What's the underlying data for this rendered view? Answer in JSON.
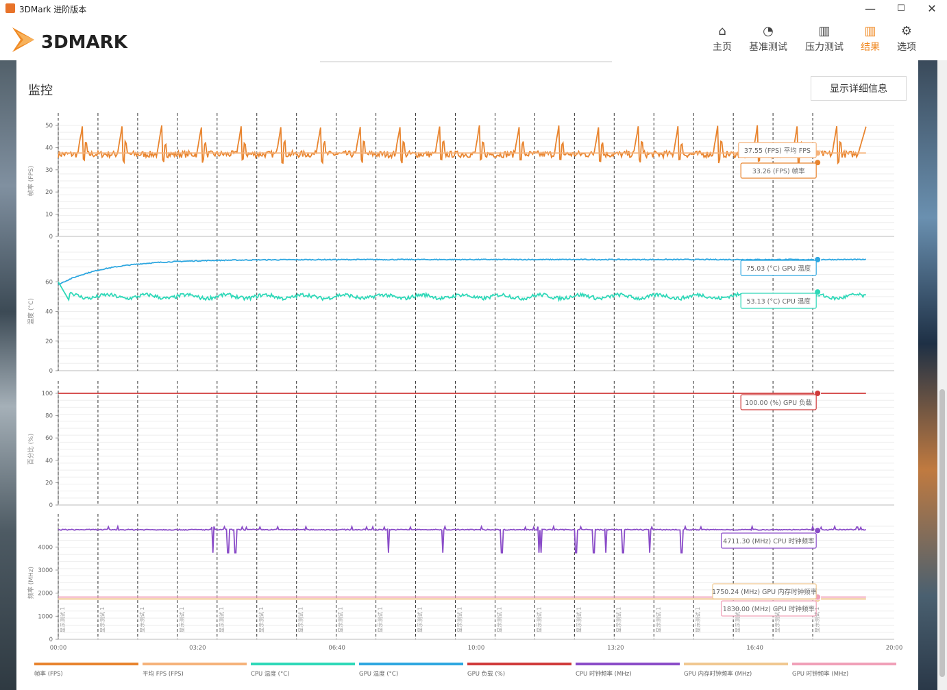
{
  "window": {
    "title": "3DMark 进阶版本",
    "min": "—",
    "max": "☐",
    "close": "✕"
  },
  "nav": {
    "items": [
      {
        "label": "主页",
        "icon": "home-icon",
        "glyph": "⌂"
      },
      {
        "label": "基准测试",
        "icon": "speedometer-icon",
        "glyph": "◔"
      },
      {
        "label": "压力测试",
        "icon": "bar-chart-icon",
        "glyph": "▥"
      },
      {
        "label": "结果",
        "icon": "results-icon",
        "glyph": "▥"
      },
      {
        "label": "选项",
        "icon": "gear-icon",
        "glyph": "⚙"
      }
    ],
    "active": 3,
    "accent": "#f08a24"
  },
  "logo": {
    "text": "3DMARK"
  },
  "section": {
    "title": "监控",
    "details_button": "显示详细信息"
  },
  "chart_data": {
    "type": "line",
    "x_ticks": [
      "00:00",
      "03:20",
      "06:40",
      "10:00",
      "13:20",
      "16:40",
      "20:00"
    ],
    "xlim_seconds": [
      0,
      1200
    ],
    "test_markers_seconds": [
      0,
      57,
      114,
      171,
      228,
      285,
      342,
      399,
      456,
      513,
      570,
      627,
      684,
      741,
      798,
      855,
      912,
      969,
      1026,
      1083
    ],
    "test_marker_label": "显示测试 1",
    "panels": [
      {
        "ylabel": "帧率 (FPS)",
        "ylim": [
          0,
          50
        ],
        "yticks": [
          0,
          10,
          20,
          30,
          40,
          50
        ],
        "series": [
          {
            "name": "帧率 (FPS)",
            "color": "#e8842e",
            "pattern": "sawtooth",
            "min": 33,
            "max": 50,
            "base": 37,
            "period_seconds": 57,
            "end_value": 50
          },
          {
            "name": "平均 FPS (FPS)",
            "color": "#f5b27a",
            "constant": 37.55
          }
        ],
        "callouts": [
          {
            "text": "37.55 (FPS) 平均 FPS",
            "color": "#f5b27a"
          },
          {
            "text": "33.26 (FPS) 帧率",
            "color": "#e8842e"
          }
        ]
      },
      {
        "ylabel": "温度 (°C)",
        "ylim": [
          0,
          80
        ],
        "yticks": [
          0,
          20,
          40,
          60
        ],
        "series": [
          {
            "name": "GPU 温度 (°C)",
            "color": "#2ea7e0",
            "start": 58,
            "plateau": 75,
            "ramp_seconds": 200
          },
          {
            "name": "CPU 温度 (°C)",
            "color": "#2ed8b8",
            "start": 60,
            "base": 50,
            "noise": 2.5,
            "end_value": 50
          }
        ],
        "callouts": [
          {
            "text": "75.03 (°C) GPU 温度",
            "color": "#2ea7e0"
          },
          {
            "text": "53.13 (°C) CPU 温度",
            "color": "#2ed8b8"
          }
        ]
      },
      {
        "ylabel": "百分比 (%)",
        "ylim": [
          0,
          100
        ],
        "yticks": [
          0,
          20,
          40,
          60,
          80,
          100
        ],
        "series": [
          {
            "name": "GPU 负载 (%)",
            "color": "#d03a3a",
            "constant": 100
          }
        ],
        "callouts": [
          {
            "text": "100.00 (%) GPU 负载",
            "color": "#d03a3a"
          }
        ]
      },
      {
        "ylabel": "频率 (MHz)",
        "ylim": [
          0,
          4900
        ],
        "yticks": [
          0,
          1000,
          2000,
          3000,
          4000
        ],
        "series": [
          {
            "name": "CPU 时钟频率 (MHz)",
            "color": "#8a4cc8",
            "base": 4750,
            "dips_seconds": [
              222,
              244,
              254,
              474,
              552,
              637,
              690,
              693,
              743,
              769,
              786,
              811,
              849,
              895
            ],
            "dip_value": 3750
          },
          {
            "name": "GPU 内存时钟频率 (MHz)",
            "color": "#f0c890",
            "constant": 1750.24
          },
          {
            "name": "GPU 时钟频率 (MHz)",
            "color": "#f0a0b8",
            "constant": 1830
          }
        ],
        "callouts": [
          {
            "text": "4711.30 (MHz) CPU 时钟频率",
            "color": "#8a4cc8"
          },
          {
            "text": "1750.24 (MHz) GPU 内存时钟频率",
            "color": "#f0c890"
          },
          {
            "text": "1830.00 (MHz) GPU 时钟频率",
            "color": "#f0a0b8"
          }
        ]
      }
    ],
    "legend": [
      {
        "name": "帧率 (FPS)",
        "color": "#e8842e"
      },
      {
        "name": "平均 FPS (FPS)",
        "color": "#f5b27a"
      },
      {
        "name": "CPU 温度 (°C)",
        "color": "#2ed8b8"
      },
      {
        "name": "GPU 温度 (°C)",
        "color": "#2ea7e0"
      },
      {
        "name": "GPU 负载 (%)",
        "color": "#d03a3a"
      },
      {
        "name": "CPU 时钟频率 (MHz)",
        "color": "#8a4cc8"
      },
      {
        "name": "GPU 内存时钟频率 (MHz)",
        "color": "#f0c890"
      },
      {
        "name": "GPU 时钟频率 (MHz)",
        "color": "#f0a0b8"
      }
    ]
  }
}
